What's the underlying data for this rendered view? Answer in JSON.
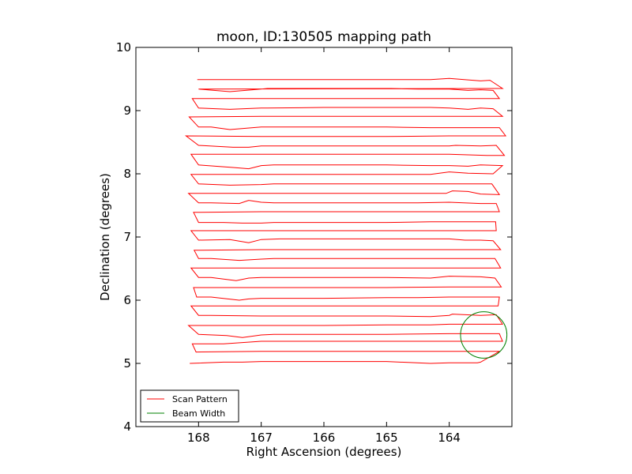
{
  "chart_data": {
    "type": "line",
    "title": "moon, ID:130505 mapping path",
    "xlabel": "Right Ascension (degrees)",
    "ylabel": "Declination (degrees)",
    "xlim": [
      169.0,
      163.0
    ],
    "ylim": [
      4,
      10
    ],
    "x_ticks": [
      168,
      167,
      166,
      165,
      164
    ],
    "y_ticks": [
      4,
      5,
      6,
      7,
      8,
      9,
      10
    ],
    "x_tick_labels": [
      "168",
      "167",
      "166",
      "165",
      "164"
    ],
    "y_tick_labels": [
      "4",
      "5",
      "6",
      "7",
      "8",
      "9",
      "10"
    ],
    "grid": false,
    "legend": {
      "placement": "lower-left"
    },
    "series": [
      {
        "name": "Scan Pattern",
        "color": "#ff0000",
        "points": [
          [
            168.14,
            5.0
          ],
          [
            167.6,
            5.02
          ],
          [
            167.3,
            5.02
          ],
          [
            167.0,
            5.03
          ],
          [
            166.0,
            5.03
          ],
          [
            165.0,
            5.03
          ],
          [
            164.3,
            5.0
          ],
          [
            164.0,
            5.01
          ],
          [
            163.55,
            5.01
          ],
          [
            163.5,
            5.02
          ],
          [
            163.2,
            5.19
          ],
          [
            164.0,
            5.19
          ],
          [
            165.0,
            5.19
          ],
          [
            166.0,
            5.19
          ],
          [
            167.0,
            5.19
          ],
          [
            168.04,
            5.18
          ],
          [
            168.1,
            5.31
          ],
          [
            167.6,
            5.31
          ],
          [
            167.0,
            5.35
          ],
          [
            166.0,
            5.35
          ],
          [
            165.0,
            5.35
          ],
          [
            164.0,
            5.35
          ],
          [
            163.15,
            5.35
          ],
          [
            163.2,
            5.47
          ],
          [
            164.0,
            5.47
          ],
          [
            165.0,
            5.46
          ],
          [
            166.0,
            5.46
          ],
          [
            166.8,
            5.46
          ],
          [
            167.0,
            5.45
          ],
          [
            167.3,
            5.41
          ],
          [
            167.55,
            5.44
          ],
          [
            168.0,
            5.46
          ],
          [
            168.16,
            5.6
          ],
          [
            167.0,
            5.6
          ],
          [
            166.0,
            5.6
          ],
          [
            165.0,
            5.61
          ],
          [
            164.3,
            5.61
          ],
          [
            164.0,
            5.62
          ],
          [
            163.15,
            5.62
          ],
          [
            163.25,
            5.77
          ],
          [
            163.5,
            5.76
          ],
          [
            163.95,
            5.78
          ],
          [
            164.0,
            5.76
          ],
          [
            164.3,
            5.74
          ],
          [
            165.0,
            5.75
          ],
          [
            166.0,
            5.75
          ],
          [
            166.6,
            5.75
          ],
          [
            167.0,
            5.75
          ],
          [
            167.8,
            5.76
          ],
          [
            168.0,
            5.76
          ],
          [
            168.12,
            5.91
          ],
          [
            167.0,
            5.91
          ],
          [
            166.0,
            5.91
          ],
          [
            165.0,
            5.91
          ],
          [
            164.0,
            5.91
          ],
          [
            163.22,
            5.91
          ],
          [
            163.2,
            6.05
          ],
          [
            164.0,
            6.05
          ],
          [
            164.5,
            6.04
          ],
          [
            165.0,
            6.04
          ],
          [
            166.0,
            6.03
          ],
          [
            167.0,
            6.03
          ],
          [
            167.2,
            6.02
          ],
          [
            167.35,
            6.0
          ],
          [
            167.8,
            6.05
          ],
          [
            168.03,
            6.05
          ],
          [
            168.08,
            6.2
          ],
          [
            167.0,
            6.2
          ],
          [
            166.0,
            6.2
          ],
          [
            165.0,
            6.2
          ],
          [
            164.0,
            6.21
          ],
          [
            163.17,
            6.21
          ],
          [
            163.27,
            6.35
          ],
          [
            163.5,
            6.37
          ],
          [
            164.0,
            6.38
          ],
          [
            164.3,
            6.35
          ],
          [
            165.0,
            6.36
          ],
          [
            166.0,
            6.36
          ],
          [
            167.0,
            6.36
          ],
          [
            167.2,
            6.35
          ],
          [
            167.4,
            6.31
          ],
          [
            167.8,
            6.36
          ],
          [
            168.0,
            6.36
          ],
          [
            168.12,
            6.51
          ],
          [
            167.0,
            6.51
          ],
          [
            166.0,
            6.51
          ],
          [
            165.0,
            6.51
          ],
          [
            164.0,
            6.51
          ],
          [
            163.18,
            6.51
          ],
          [
            163.27,
            6.66
          ],
          [
            163.5,
            6.66
          ],
          [
            164.0,
            6.66
          ],
          [
            164.5,
            6.66
          ],
          [
            165.0,
            6.66
          ],
          [
            166.0,
            6.66
          ],
          [
            166.8,
            6.66
          ],
          [
            167.0,
            6.65
          ],
          [
            167.35,
            6.63
          ],
          [
            167.8,
            6.66
          ],
          [
            168.0,
            6.66
          ],
          [
            168.07,
            6.79
          ],
          [
            167.0,
            6.8
          ],
          [
            166.0,
            6.8
          ],
          [
            165.0,
            6.8
          ],
          [
            164.0,
            6.8
          ],
          [
            163.18,
            6.8
          ],
          [
            163.3,
            6.94
          ],
          [
            163.5,
            6.95
          ],
          [
            163.75,
            6.95
          ],
          [
            164.0,
            6.97
          ],
          [
            164.5,
            6.97
          ],
          [
            165.0,
            6.97
          ],
          [
            166.0,
            6.97
          ],
          [
            166.7,
            6.97
          ],
          [
            167.0,
            6.96
          ],
          [
            167.2,
            6.91
          ],
          [
            167.5,
            6.96
          ],
          [
            168.0,
            6.95
          ],
          [
            168.12,
            7.1
          ],
          [
            167.0,
            7.1
          ],
          [
            166.0,
            7.1
          ],
          [
            165.0,
            7.1
          ],
          [
            164.0,
            7.1
          ],
          [
            163.25,
            7.1
          ],
          [
            163.26,
            7.24
          ],
          [
            163.5,
            7.24
          ],
          [
            164.0,
            7.24
          ],
          [
            164.3,
            7.24
          ],
          [
            165.0,
            7.23
          ],
          [
            166.0,
            7.23
          ],
          [
            166.8,
            7.23
          ],
          [
            167.0,
            7.22
          ],
          [
            167.3,
            7.22
          ],
          [
            167.6,
            7.23
          ],
          [
            168.0,
            7.23
          ],
          [
            168.08,
            7.39
          ],
          [
            167.0,
            7.4
          ],
          [
            166.0,
            7.4
          ],
          [
            165.0,
            7.4
          ],
          [
            164.0,
            7.4
          ],
          [
            163.2,
            7.4
          ],
          [
            163.25,
            7.53
          ],
          [
            163.5,
            7.53
          ],
          [
            164.0,
            7.55
          ],
          [
            164.5,
            7.54
          ],
          [
            165.0,
            7.54
          ],
          [
            166.0,
            7.54
          ],
          [
            166.8,
            7.54
          ],
          [
            167.0,
            7.55
          ],
          [
            167.2,
            7.58
          ],
          [
            167.35,
            7.53
          ],
          [
            167.8,
            7.54
          ],
          [
            168.0,
            7.54
          ],
          [
            168.16,
            7.69
          ],
          [
            167.0,
            7.69
          ],
          [
            166.0,
            7.69
          ],
          [
            165.0,
            7.69
          ],
          [
            164.05,
            7.69
          ],
          [
            163.95,
            7.73
          ],
          [
            163.7,
            7.72
          ],
          [
            163.5,
            7.68
          ],
          [
            163.2,
            7.67
          ],
          [
            163.32,
            7.84
          ],
          [
            163.5,
            7.84
          ],
          [
            164.0,
            7.84
          ],
          [
            164.5,
            7.84
          ],
          [
            165.0,
            7.84
          ],
          [
            166.0,
            7.84
          ],
          [
            166.8,
            7.84
          ],
          [
            167.0,
            7.83
          ],
          [
            167.5,
            7.82
          ],
          [
            168.0,
            7.84
          ],
          [
            168.12,
            7.99
          ],
          [
            167.0,
            7.99
          ],
          [
            166.0,
            7.99
          ],
          [
            165.0,
            7.99
          ],
          [
            164.3,
            7.99
          ],
          [
            164.0,
            8.03
          ],
          [
            163.7,
            8.01
          ],
          [
            163.3,
            8.0
          ],
          [
            163.15,
            8.13
          ],
          [
            163.5,
            8.14
          ],
          [
            163.7,
            8.12
          ],
          [
            164.0,
            8.13
          ],
          [
            164.3,
            8.13
          ],
          [
            165.0,
            8.14
          ],
          [
            166.0,
            8.14
          ],
          [
            166.8,
            8.14
          ],
          [
            167.0,
            8.13
          ],
          [
            167.2,
            8.08
          ],
          [
            167.45,
            8.1
          ],
          [
            168.0,
            8.14
          ],
          [
            168.12,
            8.31
          ],
          [
            167.0,
            8.31
          ],
          [
            166.0,
            8.31
          ],
          [
            165.0,
            8.31
          ],
          [
            164.0,
            8.31
          ],
          [
            163.4,
            8.29
          ],
          [
            163.12,
            8.29
          ],
          [
            163.25,
            8.45
          ],
          [
            163.5,
            8.44
          ],
          [
            163.9,
            8.45
          ],
          [
            164.0,
            8.44
          ],
          [
            164.3,
            8.44
          ],
          [
            165.0,
            8.44
          ],
          [
            166.0,
            8.44
          ],
          [
            167.0,
            8.44
          ],
          [
            167.2,
            8.42
          ],
          [
            167.45,
            8.42
          ],
          [
            168.0,
            8.45
          ],
          [
            168.2,
            8.6
          ],
          [
            167.0,
            8.59
          ],
          [
            166.0,
            8.59
          ],
          [
            165.0,
            8.59
          ],
          [
            164.0,
            8.6
          ],
          [
            163.1,
            8.6
          ],
          [
            163.2,
            8.73
          ],
          [
            163.5,
            8.73
          ],
          [
            164.0,
            8.73
          ],
          [
            164.3,
            8.73
          ],
          [
            165.0,
            8.74
          ],
          [
            166.0,
            8.74
          ],
          [
            167.0,
            8.74
          ],
          [
            167.25,
            8.72
          ],
          [
            167.5,
            8.7
          ],
          [
            167.8,
            8.74
          ],
          [
            168.0,
            8.74
          ],
          [
            168.15,
            8.9
          ],
          [
            167.0,
            8.91
          ],
          [
            166.0,
            8.91
          ],
          [
            165.0,
            8.91
          ],
          [
            164.0,
            8.91
          ],
          [
            163.15,
            8.91
          ],
          [
            163.3,
            9.03
          ],
          [
            163.5,
            9.04
          ],
          [
            163.7,
            9.02
          ],
          [
            164.0,
            9.04
          ],
          [
            164.3,
            9.05
          ],
          [
            165.0,
            9.05
          ],
          [
            166.0,
            9.05
          ],
          [
            166.9,
            9.04
          ],
          [
            167.0,
            9.04
          ],
          [
            167.5,
            9.02
          ],
          [
            168.0,
            9.04
          ],
          [
            168.1,
            9.19
          ],
          [
            167.0,
            9.19
          ],
          [
            166.0,
            9.19
          ],
          [
            165.0,
            9.19
          ],
          [
            164.0,
            9.19
          ],
          [
            163.2,
            9.19
          ],
          [
            163.3,
            9.32
          ],
          [
            163.5,
            9.33
          ],
          [
            163.7,
            9.32
          ],
          [
            164.0,
            9.34
          ],
          [
            164.5,
            9.34
          ],
          [
            165.0,
            9.35
          ],
          [
            166.0,
            9.35
          ],
          [
            166.9,
            9.35
          ],
          [
            167.0,
            9.34
          ],
          [
            167.5,
            9.3
          ],
          [
            168.0,
            9.34
          ],
          [
            163.15,
            9.35
          ],
          [
            163.35,
            9.48
          ],
          [
            163.5,
            9.47
          ],
          [
            164.0,
            9.51
          ],
          [
            164.3,
            9.49
          ],
          [
            165.0,
            9.49
          ],
          [
            166.0,
            9.49
          ],
          [
            167.0,
            9.49
          ],
          [
            168.02,
            9.49
          ]
        ]
      },
      {
        "name": "Beam Width",
        "color": "#008000",
        "circle": {
          "center_ra": 163.45,
          "center_dec": 5.45,
          "radius_deg": 0.37
        }
      }
    ]
  }
}
